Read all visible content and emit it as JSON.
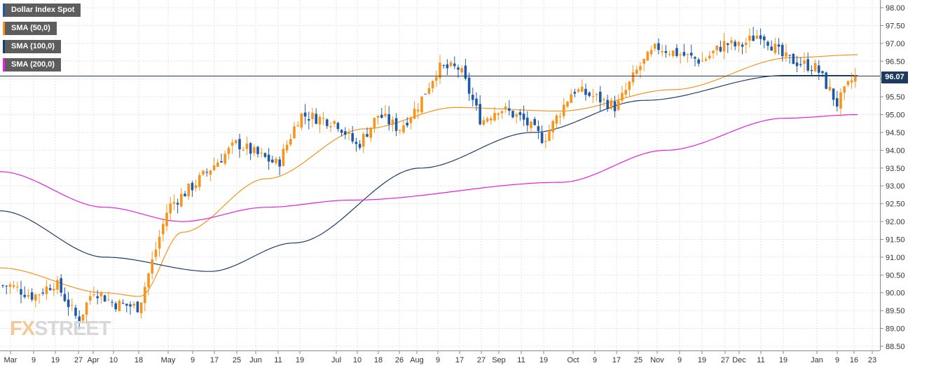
{
  "legend": {
    "main": "Dollar Index Spot",
    "sma50": "SMA (50,0)",
    "sma100": "SMA (100,0)",
    "sma200": "SMA (200,0)"
  },
  "current_price_label": "96.07",
  "watermark": {
    "part1": "FX",
    "part2": "STREET"
  },
  "colors": {
    "up": "#f7941d",
    "down": "#1e5aa8",
    "sma50": "#f7941d",
    "sma100": "#1f3c6e",
    "sma200": "#e91ee0",
    "price_line": "#1e3a5f",
    "grid": "#e3e3e3"
  },
  "chart_data": {
    "type": "candlestick",
    "title": "Dollar Index Spot",
    "ylim": [
      88.5,
      98.0
    ],
    "y_ticks": [
      "98.00",
      "97.50",
      "97.00",
      "96.50",
      "96.00",
      "95.50",
      "95.00",
      "94.50",
      "94.00",
      "93.50",
      "93.00",
      "92.50",
      "92.00",
      "91.50",
      "91.00",
      "90.50",
      "90.00",
      "89.50",
      "89.00",
      "88.50"
    ],
    "x_ticks": [
      "Mar",
      "9",
      "19",
      "27",
      "Apr",
      "10",
      "18",
      "May",
      "9",
      "17",
      "25",
      "Jun",
      "11",
      "19",
      "Jul",
      "10",
      "18",
      "26",
      "Aug",
      "9",
      "17",
      "27",
      "Sep",
      "11",
      "19",
      "Oct",
      "9",
      "17",
      "25",
      "Nov",
      "9",
      "19",
      "27",
      "Dec",
      "11",
      "19",
      "Jan",
      "9",
      "16",
      "23"
    ],
    "grid": true,
    "last_price": 96.07,
    "anchors": [
      {
        "date": "Mar",
        "close": 90.2
      },
      {
        "date": "9",
        "close": 89.9
      },
      {
        "date": "19",
        "close": 90.3
      },
      {
        "date": "27",
        "close": 89.2
      },
      {
        "date": "Apr",
        "close": 90.1
      },
      {
        "date": "10",
        "close": 89.7
      },
      {
        "date": "18",
        "close": 89.6
      },
      {
        "date": "May",
        "close": 92.4
      },
      {
        "date": "9",
        "close": 93.0
      },
      {
        "date": "17",
        "close": 93.6
      },
      {
        "date": "25",
        "close": 94.2
      },
      {
        "date": "Jun",
        "close": 93.9
      },
      {
        "date": "11",
        "close": 93.6
      },
      {
        "date": "19",
        "close": 95.0
      },
      {
        "date": "Jul",
        "close": 94.8
      },
      {
        "date": "10",
        "close": 94.1
      },
      {
        "date": "18",
        "close": 95.0
      },
      {
        "date": "26",
        "close": 94.6
      },
      {
        "date": "Aug",
        "close": 95.2
      },
      {
        "date": "9",
        "close": 96.3
      },
      {
        "date": "17",
        "close": 96.3
      },
      {
        "date": "27",
        "close": 94.8
      },
      {
        "date": "Sep",
        "close": 95.2
      },
      {
        "date": "11",
        "close": 94.9
      },
      {
        "date": "19",
        "close": 94.3
      },
      {
        "date": "Oct",
        "close": 95.7
      },
      {
        "date": "9",
        "close": 95.5
      },
      {
        "date": "17",
        "close": 95.2
      },
      {
        "date": "25",
        "close": 96.3
      },
      {
        "date": "Nov",
        "close": 96.9
      },
      {
        "date": "9",
        "close": 96.7
      },
      {
        "date": "19",
        "close": 96.5
      },
      {
        "date": "27",
        "close": 97.0
      },
      {
        "date": "Dec",
        "close": 96.9
      },
      {
        "date": "11",
        "close": 97.3
      },
      {
        "date": "19",
        "close": 96.6
      },
      {
        "date": "Jan",
        "close": 96.3
      },
      {
        "date": "9",
        "close": 95.3
      },
      {
        "date": "16",
        "close": 96.07
      }
    ],
    "series": [
      {
        "name": "SMA (50,0)",
        "values": [
          90.7,
          90.0,
          89.9,
          91.7,
          93.2,
          94.6,
          95.2,
          95.1,
          95.7,
          96.6,
          96.68
        ]
      },
      {
        "name": "SMA (100,0)",
        "values": [
          92.3,
          91.0,
          90.6,
          91.4,
          93.5,
          94.5,
          95.4,
          96.1,
          96.1
        ]
      },
      {
        "name": "SMA (200,0)",
        "values": [
          93.4,
          92.4,
          92.0,
          92.4,
          92.6,
          93.1,
          94.0,
          94.9,
          95.0
        ]
      }
    ]
  }
}
